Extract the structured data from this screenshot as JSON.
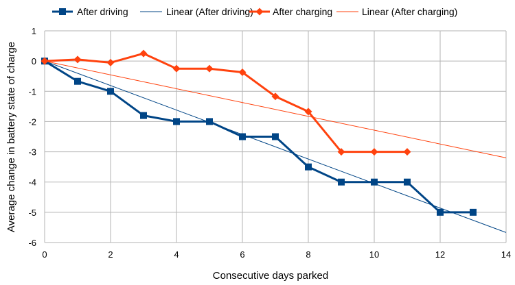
{
  "chart_data": {
    "type": "line",
    "title": "",
    "xlabel": "Consecutive days parked",
    "ylabel": "Average change in battery state of charge",
    "xlim": [
      0,
      14
    ],
    "ylim": [
      -6,
      1
    ],
    "xticks": [
      0,
      2,
      4,
      6,
      8,
      10,
      12,
      14
    ],
    "yticks": [
      1,
      0,
      -1,
      -2,
      -3,
      -4,
      -5,
      -6
    ],
    "grid": true,
    "legend": "top",
    "series": [
      {
        "name": "After driving",
        "kind": "line-markers",
        "marker": "square",
        "color": "#004586",
        "x": [
          0,
          1,
          2,
          3,
          4,
          5,
          6,
          7,
          8,
          9,
          10,
          11,
          12,
          13
        ],
        "y": [
          0,
          -0.67,
          -1,
          -1.8,
          -2,
          -2,
          -2.5,
          -2.5,
          -3.5,
          -4,
          -4,
          -4,
          -5,
          -5
        ]
      },
      {
        "name": "Linear (After driving)",
        "kind": "trendline",
        "color": "#004586",
        "x": [
          0,
          14
        ],
        "y": [
          0,
          -5.67
        ]
      },
      {
        "name": "After charging",
        "kind": "line-markers",
        "marker": "diamond",
        "color": "#ff420e",
        "x": [
          0,
          1,
          2,
          3,
          4,
          5,
          6,
          7,
          8,
          9,
          10,
          11
        ],
        "y": [
          0,
          0.05,
          -0.05,
          0.25,
          -0.25,
          -0.25,
          -0.37,
          -1.17,
          -1.67,
          -3,
          -3,
          -3
        ]
      },
      {
        "name": "Linear (After charging)",
        "kind": "trendline",
        "color": "#ff420e",
        "x": [
          0,
          14
        ],
        "y": [
          0,
          -3.2
        ]
      }
    ]
  }
}
